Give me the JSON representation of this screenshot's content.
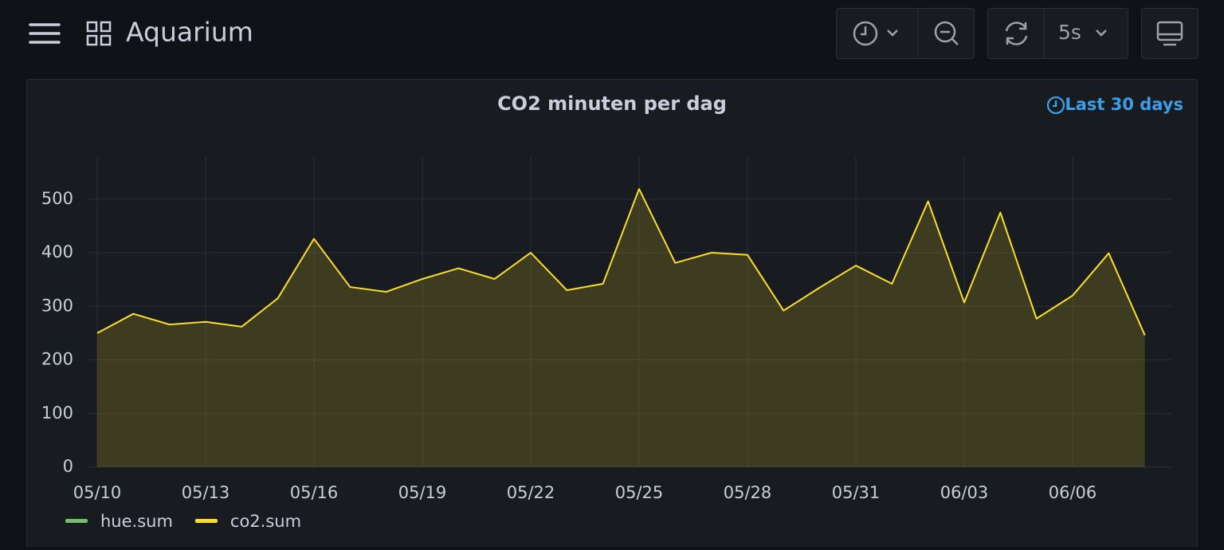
{
  "header": {
    "title": "Aquarium",
    "refresh_interval": "5s"
  },
  "chart_data": {
    "type": "line",
    "title": "CO2 minuten per dag",
    "time_range": "Last 30 days",
    "categories": [
      "05/10",
      null,
      null,
      "05/13",
      null,
      null,
      "05/16",
      null,
      null,
      "05/19",
      null,
      null,
      "05/22",
      null,
      null,
      "05/25",
      null,
      null,
      "05/28",
      null,
      null,
      "05/31",
      null,
      null,
      "06/03",
      null,
      null,
      "06/06",
      null,
      null
    ],
    "series": [
      {
        "name": "hue.sum",
        "color": "#73bf69"
      },
      {
        "name": "co2.sum",
        "color": "#fade2a",
        "values": [
          250,
          286,
          266,
          271,
          262,
          315,
          426,
          336,
          327,
          351,
          371,
          351,
          400,
          330,
          342,
          519,
          381,
          400,
          396,
          292,
          335,
          376,
          342,
          496,
          307,
          475,
          277,
          320,
          399,
          246
        ]
      }
    ],
    "ylim": [
      0,
      580
    ],
    "yticks": [
      0,
      100,
      200,
      300,
      400,
      500
    ],
    "grid": true,
    "fill": true
  }
}
